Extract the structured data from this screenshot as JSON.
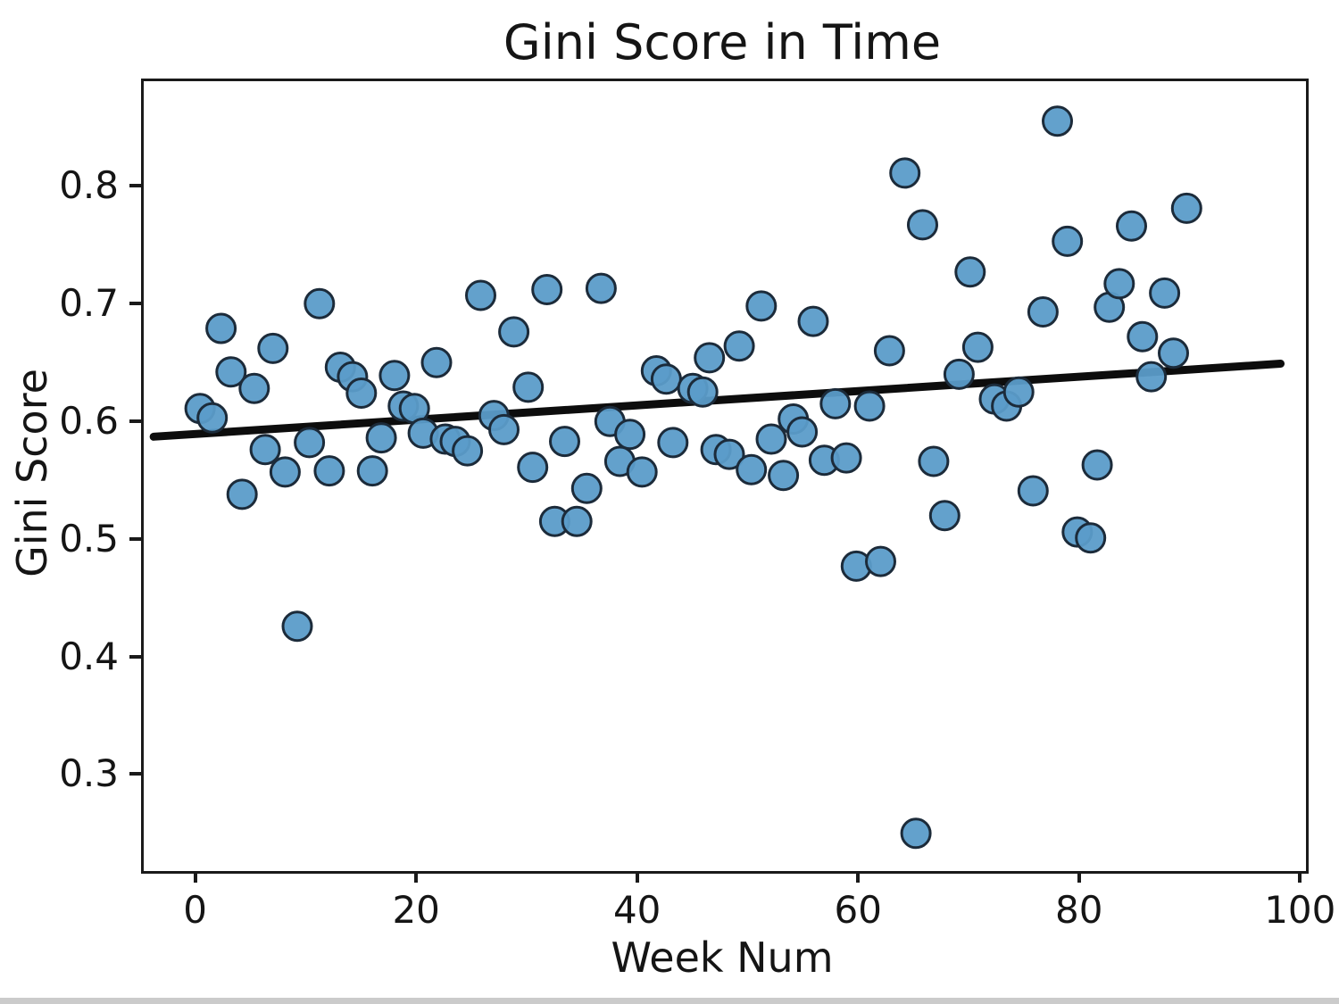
{
  "chart_data": {
    "type": "scatter",
    "title": "Gini Score in Time",
    "xlabel": "Week Num",
    "ylabel": "Gini Score",
    "xlim": [
      -4.9,
      100.3
    ],
    "ylim": [
      0.22,
      0.891
    ],
    "xticks": [
      0,
      20,
      40,
      60,
      80,
      100
    ],
    "yticks": [
      0.3,
      0.4,
      0.5,
      0.6,
      0.7,
      0.8
    ],
    "grid": false,
    "legend": "none",
    "marker_fill": "#5b9cc9",
    "marker_edge": "#1c2b3a",
    "trend_color": "#0d0d0d",
    "points": [
      [
        0.2,
        0.613
      ],
      [
        1.3,
        0.605
      ],
      [
        2.1,
        0.681
      ],
      [
        3.0,
        0.644
      ],
      [
        4.0,
        0.54
      ],
      [
        5.1,
        0.63
      ],
      [
        6.1,
        0.578
      ],
      [
        6.8,
        0.664
      ],
      [
        7.9,
        0.559
      ],
      [
        9.0,
        0.428
      ],
      [
        10.1,
        0.584
      ],
      [
        11.0,
        0.702
      ],
      [
        11.9,
        0.56
      ],
      [
        12.9,
        0.648
      ],
      [
        14.0,
        0.64
      ],
      [
        14.8,
        0.626
      ],
      [
        15.8,
        0.56
      ],
      [
        16.6,
        0.588
      ],
      [
        17.8,
        0.641
      ],
      [
        18.6,
        0.615
      ],
      [
        19.6,
        0.613
      ],
      [
        20.4,
        0.592
      ],
      [
        21.6,
        0.652
      ],
      [
        22.4,
        0.587
      ],
      [
        23.3,
        0.585
      ],
      [
        24.4,
        0.577
      ],
      [
        25.6,
        0.709
      ],
      [
        26.8,
        0.607
      ],
      [
        27.7,
        0.595
      ],
      [
        28.6,
        0.678
      ],
      [
        29.9,
        0.631
      ],
      [
        30.3,
        0.563
      ],
      [
        31.6,
        0.714
      ],
      [
        32.3,
        0.517
      ],
      [
        33.2,
        0.585
      ],
      [
        34.3,
        0.517
      ],
      [
        35.2,
        0.545
      ],
      [
        36.5,
        0.715
      ],
      [
        37.3,
        0.602
      ],
      [
        38.2,
        0.568
      ],
      [
        39.1,
        0.591
      ],
      [
        40.2,
        0.559
      ],
      [
        41.5,
        0.645
      ],
      [
        42.4,
        0.638
      ],
      [
        43.0,
        0.584
      ],
      [
        44.8,
        0.63
      ],
      [
        45.7,
        0.627
      ],
      [
        46.3,
        0.656
      ],
      [
        46.9,
        0.578
      ],
      [
        48.1,
        0.574
      ],
      [
        49.0,
        0.666
      ],
      [
        50.1,
        0.561
      ],
      [
        51.0,
        0.7
      ],
      [
        51.9,
        0.587
      ],
      [
        53.0,
        0.556
      ],
      [
        53.9,
        0.604
      ],
      [
        54.7,
        0.593
      ],
      [
        55.7,
        0.687
      ],
      [
        56.7,
        0.569
      ],
      [
        57.7,
        0.617
      ],
      [
        58.7,
        0.571
      ],
      [
        59.6,
        0.479
      ],
      [
        60.8,
        0.615
      ],
      [
        61.8,
        0.483
      ],
      [
        62.6,
        0.662
      ],
      [
        64.0,
        0.813
      ],
      [
        65.0,
        0.252
      ],
      [
        65.6,
        0.769
      ],
      [
        66.6,
        0.568
      ],
      [
        67.6,
        0.522
      ],
      [
        68.9,
        0.642
      ],
      [
        69.9,
        0.729
      ],
      [
        70.6,
        0.665
      ],
      [
        72.1,
        0.621
      ],
      [
        73.2,
        0.615
      ],
      [
        74.3,
        0.627
      ],
      [
        75.6,
        0.543
      ],
      [
        76.5,
        0.695
      ],
      [
        77.8,
        0.857
      ],
      [
        78.7,
        0.755
      ],
      [
        79.6,
        0.508
      ],
      [
        80.8,
        0.503
      ],
      [
        81.4,
        0.565
      ],
      [
        82.5,
        0.699
      ],
      [
        83.4,
        0.719
      ],
      [
        84.5,
        0.768
      ],
      [
        85.5,
        0.674
      ],
      [
        86.3,
        0.64
      ],
      [
        87.5,
        0.711
      ],
      [
        88.3,
        0.66
      ],
      [
        89.5,
        0.783
      ]
    ],
    "trend_line": {
      "x": [
        -4.0,
        98.0
      ],
      "y": [
        0.589,
        0.651
      ]
    }
  }
}
